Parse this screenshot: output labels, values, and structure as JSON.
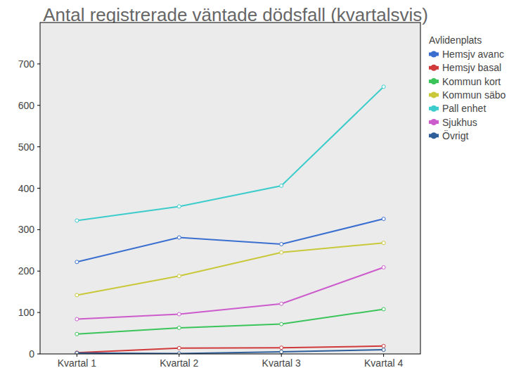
{
  "chart_data": {
    "type": "line",
    "title": "Antal registrerade väntade dödsfall (kvartalsvis)",
    "categories": [
      "Kvartal 1",
      "Kvartal 2",
      "Kvartal 3",
      "Kvartal 4"
    ],
    "series": [
      {
        "name": "Hemsjv avanc",
        "color": "#3a6fd0",
        "values": [
          222,
          281,
          265,
          326
        ]
      },
      {
        "name": "Hemsjv basal",
        "color": "#d03a3a",
        "values": [
          3,
          14,
          15,
          19
        ]
      },
      {
        "name": "Kommun kort",
        "color": "#3ac45a",
        "values": [
          48,
          63,
          72,
          108
        ]
      },
      {
        "name": "Kommun säbo",
        "color": "#c8c83a",
        "values": [
          142,
          188,
          245,
          268
        ]
      },
      {
        "name": "Pall enhet",
        "color": "#3ccccc",
        "values": [
          322,
          356,
          406,
          645
        ]
      },
      {
        "name": "Sjukhus",
        "color": "#cc5ccc",
        "values": [
          84,
          96,
          121,
          209
        ]
      },
      {
        "name": "Övrigt",
        "color": "#2f5f9a",
        "values": [
          2,
          1,
          5,
          10
        ]
      }
    ],
    "legend_title": "Avlidenplats",
    "ylim": [
      0,
      800
    ],
    "yticks": [
      0,
      100,
      200,
      300,
      400,
      500,
      600,
      700
    ],
    "grid": false,
    "legend": "right",
    "marker": "circle",
    "line_style": "solid"
  }
}
